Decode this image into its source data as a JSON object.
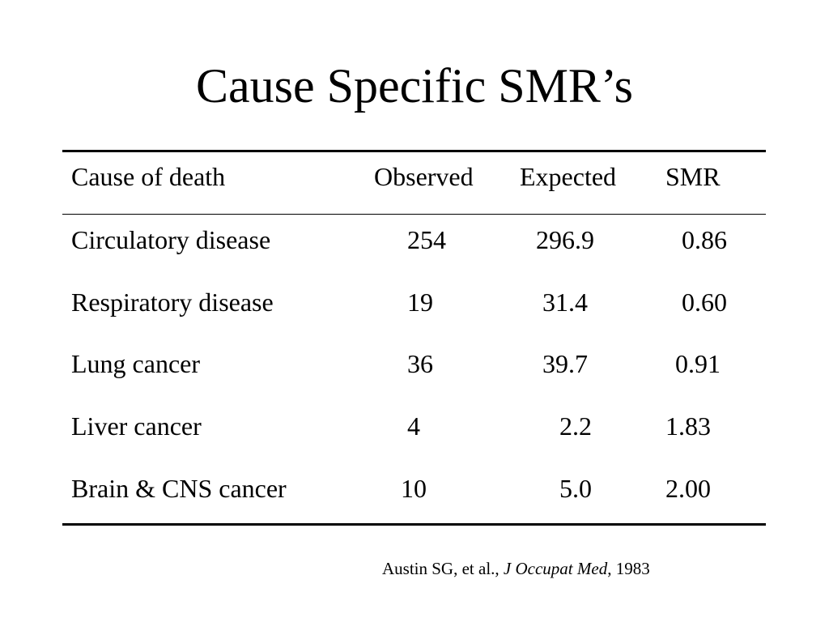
{
  "slide": {
    "title": "Cause Specific SMR’s"
  },
  "table": {
    "headers": [
      "Cause of death",
      "Observed",
      "Expected",
      "SMR"
    ],
    "rows": [
      [
        "Circulatory disease",
        "254",
        "296.9",
        "0.86"
      ],
      [
        "Respiratory disease",
        "19",
        "31.4",
        "0.60"
      ],
      [
        "Lung cancer",
        "36",
        "39.7",
        "0.91"
      ],
      [
        "Liver cancer",
        "4",
        "2.2",
        "1.83"
      ],
      [
        "Brain & CNS cancer",
        "10",
        "5.0",
        "2.00"
      ]
    ]
  },
  "citation": {
    "authors": "Austin SG, et al., ",
    "journal": "J Occupat Med",
    "year": ", 1983"
  }
}
